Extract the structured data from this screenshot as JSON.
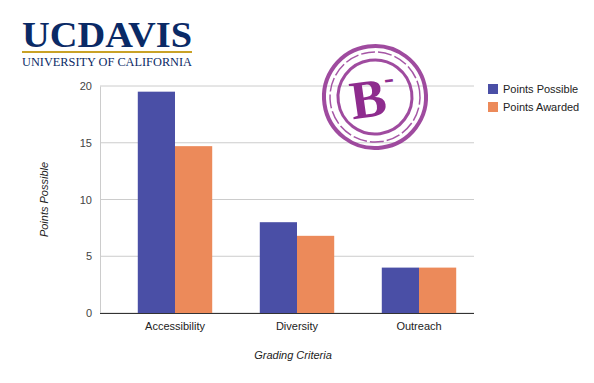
{
  "chart_data": {
    "type": "bar",
    "annotations": [
      "UCDAVIS",
      "UNIVERSITY OF CALIFORNIA",
      "B-"
    ],
    "xlabel": "Grading Criteria",
    "ylabel": "Points Possible",
    "categories": [
      "Accessibility",
      "Diversity",
      "Outreach"
    ],
    "series": [
      {
        "name": "Points Possible",
        "color": "#4a4fa6",
        "values": [
          19.5,
          8,
          4
        ]
      },
      {
        "name": "Points Awarded",
        "color": "#ec8a5a",
        "values": [
          14.7,
          6.8,
          4
        ]
      }
    ],
    "ylim": [
      0,
      20
    ],
    "yticks": [
      0,
      5,
      10,
      15,
      20
    ],
    "grid": true,
    "legend": "top-right"
  }
}
